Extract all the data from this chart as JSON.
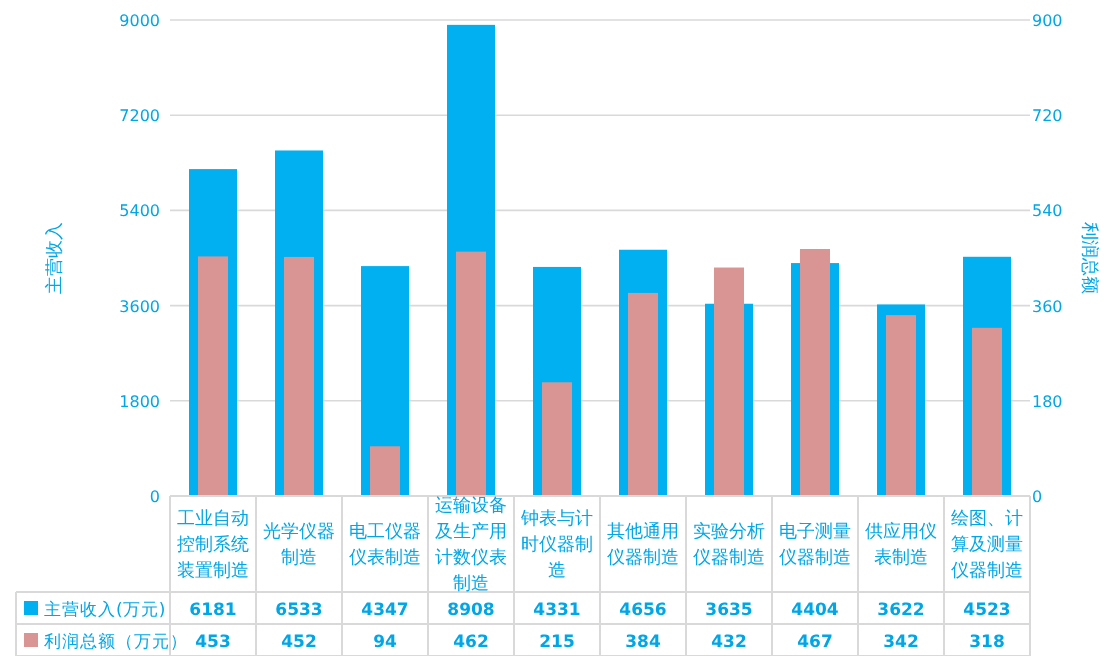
{
  "chart_data": {
    "type": "bar",
    "ylabel": "主营收入",
    "y2label": "利润总额",
    "categories": [
      "工业自动控制系统装置制造",
      "光学仪器制造",
      "电工仪器仪表制造",
      "运输设备及生产用计数仪表制造",
      "钟表与计时仪器制造",
      "其他通用仪器制造",
      "实验分析仪器制造",
      "电子测量仪器制造",
      "供应用仪表制造",
      "绘图、计算及测量仪器制造"
    ],
    "series": [
      {
        "name": "主营收入(万元)",
        "color": "#00b0f0",
        "values": [
          6181,
          6533,
          4347,
          8908,
          4331,
          4656,
          3635,
          4404,
          3622,
          4523
        ]
      },
      {
        "name": "利润总额（万元）",
        "color": "#d99594",
        "axis": "y2",
        "values": [
          453,
          452,
          94,
          462,
          215,
          384,
          432,
          467,
          342,
          318
        ]
      }
    ],
    "ylim": [
      0,
      9000
    ],
    "yticks": [
      0,
      1800,
      3600,
      5400,
      7200,
      9000
    ],
    "y2lim": [
      0,
      900
    ],
    "y2ticks": [
      0,
      180,
      360,
      540,
      720,
      900
    ],
    "grid": "y",
    "legend": "bottom",
    "data_labels": true
  }
}
